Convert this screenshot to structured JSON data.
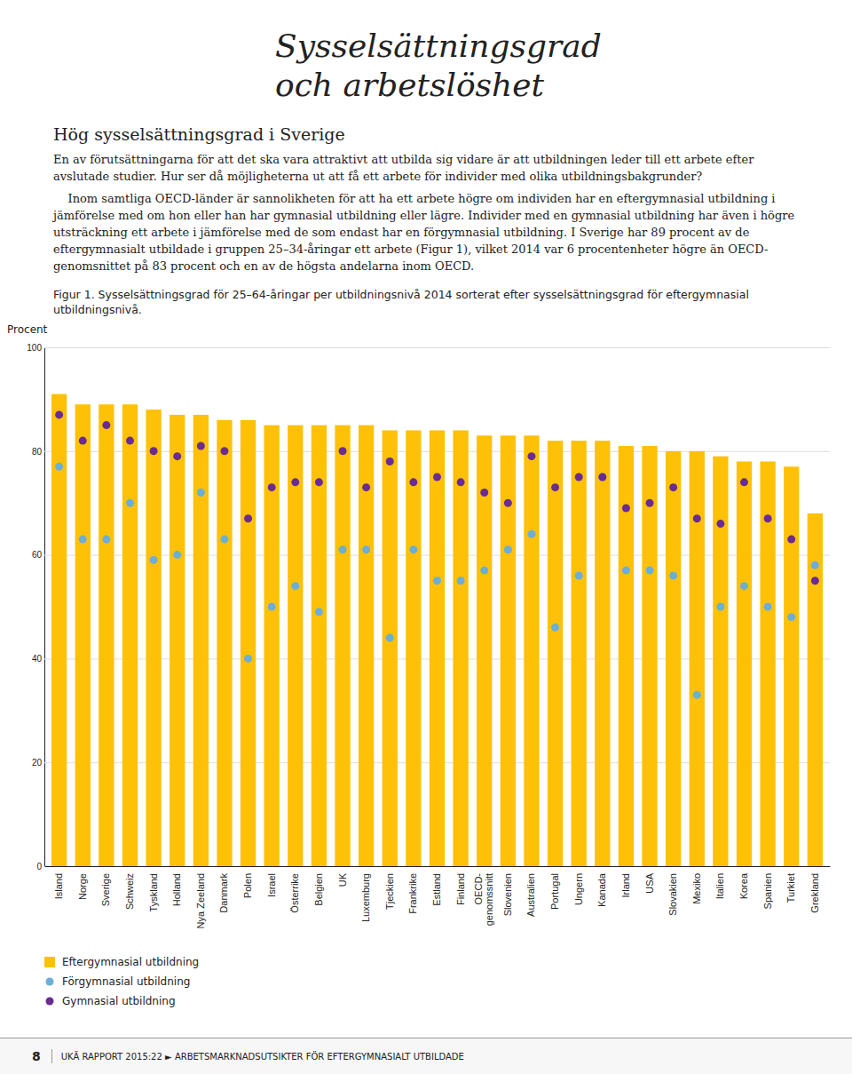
{
  "page_title": [
    "Sysselsättningsgrad",
    "och arbetslöshet"
  ],
  "section_title": "Hög sysselsättningsgrad i Sverige",
  "body": [
    "En av förutsättningarna för att det ska vara attraktivt att utbilda sig vidare är att utbildningen leder till ett arbete efter avslutade studier. Hur ser då möjligheterna ut att få ett arbete för individer med olika utbildningsbakgrunder?",
    "    Inom samtliga OECD-länder är sannolikheten för att ha ett arbete högre om individen har en eftergymnasial utbildning i jämförelse med om hon eller han har gymnasial utbildning eller lägre. Individer med en gymnasial utbildning har även i högre utsträckning ett arbete i jämförelse med de som endast har en förgymnasial utbildning. I Sverige har 89 procent av de eftergymnasialt utbildade i gruppen 25–34-åringar ett arbete (Figur 1), vilket 2014 var 6 procentenheter högre än OECD-genomsnittet på 83 procent och en av de högsta andelarna inom OECD."
  ],
  "footer": {
    "page": "8",
    "text": "UKÄ RAPPORT 2015:22  ►  ARBETSMARKNADSUTSIKTER FÖR EFTERGYMNASIALT UTBILDADE"
  },
  "chart_data": {
    "type": "bar",
    "title": "Figur 1. Sysselsättningsgrad för 25–64-åringar per utbildningsnivå 2014 sorterat efter sysselsättningsgrad för eftergymnasial utbildningsnivå.",
    "ylabel": "Procent",
    "categories": [
      "Island",
      "Norge",
      "Sverige",
      "Schweiz",
      "Tyskland",
      "Holland",
      "Nya Zeeland",
      "Danmark",
      "Polen",
      "Israel",
      "Österrike",
      "Belgien",
      "UK",
      "Luxemburg",
      "Tjeckien",
      "Frankrike",
      "Estland",
      "Finland",
      "OECD-\ngenomssnitt",
      "Slovenien",
      "Australien",
      "Portugal",
      "Ungern",
      "Kanada",
      "Irland",
      "USA",
      "Slovakien",
      "Mexiko",
      "Italien",
      "Korea",
      "Spanien",
      "Turkiet",
      "Grekland"
    ],
    "series": [
      {
        "name": "Eftergymnasial utbildning",
        "type": "bar",
        "color": "#FFC107",
        "values": [
          91,
          89,
          89,
          89,
          88,
          87,
          87,
          86,
          86,
          85,
          85,
          85,
          85,
          85,
          84,
          84,
          84,
          84,
          83,
          83,
          83,
          82,
          82,
          82,
          81,
          81,
          80,
          80,
          79,
          78,
          78,
          77,
          68
        ]
      },
      {
        "name": "Förgymnasial utbildning",
        "type": "scatter",
        "marker": "circle",
        "color": "#6BAED6",
        "values": [
          77,
          63,
          63,
          70,
          59,
          60,
          72,
          63,
          40,
          50,
          54,
          49,
          61,
          61,
          44,
          61,
          55,
          55,
          57,
          61,
          64,
          46,
          56,
          75,
          57,
          57,
          56,
          33,
          50,
          54,
          50,
          48,
          58
        ]
      },
      {
        "name": "Gymnasial utbildning",
        "type": "scatter",
        "marker": "circle",
        "color": "#6A2C91",
        "values": [
          87,
          82,
          85,
          82,
          80,
          79,
          81,
          80,
          67,
          73,
          74,
          74,
          80,
          73,
          78,
          74,
          75,
          74,
          72,
          70,
          79,
          73,
          75,
          75,
          69,
          70,
          73,
          67,
          66,
          74,
          67,
          63,
          55
        ]
      }
    ],
    "ylim": [
      0,
      100
    ],
    "yticks": [
      0,
      20,
      40,
      60,
      80,
      100
    ],
    "grid": true,
    "legend": "bottom"
  }
}
